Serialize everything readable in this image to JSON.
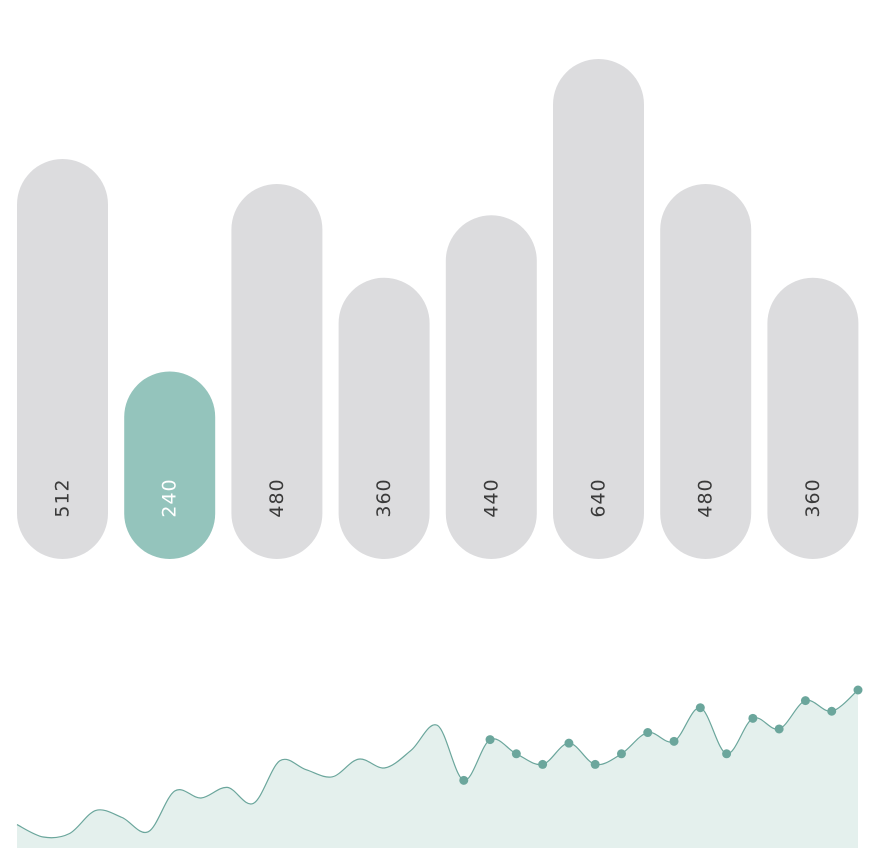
{
  "chart_data": [
    {
      "type": "bar",
      "categories": [
        "",
        "",
        "",
        "",
        "",
        "",
        "",
        ""
      ],
      "values": [
        512,
        240,
        480,
        360,
        440,
        640,
        480,
        360
      ],
      "labels": [
        "512",
        "240",
        "480",
        "360",
        "440",
        "640",
        "480",
        "360"
      ],
      "highlight_index": 1,
      "colors": {
        "bar": "#dcdcde",
        "highlight": "#94c4bc",
        "label": "#3a3a3a",
        "highlight_label": "#ffffff"
      }
    },
    {
      "type": "area",
      "x": [
        1,
        2,
        3,
        4,
        5,
        6,
        7,
        8,
        9,
        10,
        11,
        12,
        13,
        14,
        15,
        16,
        17,
        18,
        19,
        20,
        21,
        22,
        23,
        24,
        25,
        26,
        27,
        28,
        29,
        30,
        31,
        32,
        33
      ],
      "values": [
        10,
        3,
        5,
        18,
        14,
        6,
        29,
        25,
        31,
        22,
        46,
        41,
        37,
        47,
        42,
        52,
        66,
        35,
        58,
        50,
        44,
        56,
        44,
        50,
        62,
        57,
        76,
        50,
        70,
        64,
        80,
        74,
        86
      ],
      "marker_start_index": 17,
      "colors": {
        "line": "#6ba69c",
        "fill": "#e4f0ed",
        "marker": "#6ba69c"
      }
    }
  ]
}
